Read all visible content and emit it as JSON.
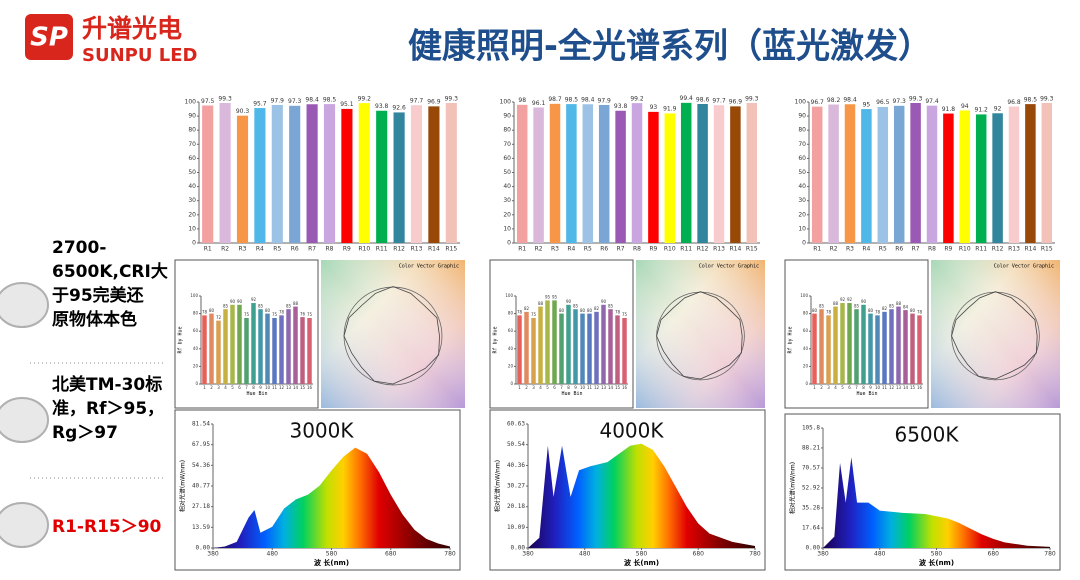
{
  "header": {
    "brand_cn": "升谱光电",
    "brand_en": "SUNPU LED",
    "title": "健康照明-全光谱系列（蓝光激发）"
  },
  "bullets": [
    {
      "lines": [
        "2700-",
        "6500K,CRI大",
        "于95完美还",
        "原物体本色"
      ],
      "color": "#000000"
    },
    {
      "lines": [
        "北美TM-30标",
        "准，Rf＞95，",
        "Rg＞97"
      ],
      "color": "#000000"
    },
    {
      "lines": [
        "R1-R15＞90"
      ],
      "color": "#e00000"
    }
  ],
  "vector_graphic": {
    "title": "Color Vector Graphic"
  },
  "chart_data": [
    {
      "type": "bar",
      "categories": [
        "R1",
        "R2",
        "R3",
        "R4",
        "R5",
        "R6",
        "R7",
        "R8",
        "R9",
        "R10",
        "R11",
        "R12",
        "R13",
        "R14",
        "R15"
      ],
      "values": [
        97.5,
        99.3,
        90.3,
        95.7,
        97.9,
        97.3,
        98.4,
        98.5,
        95.1,
        99.2,
        93.8,
        92.6,
        97.7,
        96.9,
        99.3
      ],
      "colors": [
        "#f2a0a0",
        "#d9b8dc",
        "#f79646",
        "#4fb8e8",
        "#9cc3e6",
        "#7aa6d6",
        "#9b59b6",
        "#c9a6e0",
        "#ff0000",
        "#ffff00",
        "#00b050",
        "#31859c",
        "#f8cccc",
        "#984807",
        "#f2c2b8"
      ],
      "ylim": [
        0,
        100
      ],
      "yticks": [
        0,
        10,
        20,
        30,
        40,
        50,
        60,
        70,
        80,
        90,
        100
      ]
    },
    {
      "type": "bar",
      "categories": [
        "R1",
        "R2",
        "R3",
        "R4",
        "R5",
        "R6",
        "R7",
        "R8",
        "R9",
        "R10",
        "R11",
        "R12",
        "R13",
        "R14",
        "R15"
      ],
      "values": [
        98,
        96.1,
        98.7,
        98.5,
        98.4,
        97.9,
        93.8,
        99.2,
        93,
        91.9,
        99.4,
        98.6,
        97.7,
        96.9,
        99.3
      ],
      "colors": [
        "#f2a0a0",
        "#d9b8dc",
        "#f79646",
        "#4fb8e8",
        "#9cc3e6",
        "#7aa6d6",
        "#9b59b6",
        "#c9a6e0",
        "#ff0000",
        "#ffff00",
        "#00b050",
        "#31859c",
        "#f8cccc",
        "#984807",
        "#f2c2b8"
      ],
      "ylim": [
        0,
        100
      ],
      "yticks": [
        0,
        10,
        20,
        30,
        40,
        50,
        60,
        70,
        80,
        90,
        100
      ]
    },
    {
      "type": "bar",
      "categories": [
        "R1",
        "R2",
        "R3",
        "R4",
        "R5",
        "R6",
        "R7",
        "R8",
        "R9",
        "R10",
        "R11",
        "R12",
        "R13",
        "R14",
        "R15"
      ],
      "values": [
        96.7,
        98.2,
        98.4,
        95,
        96.5,
        97.3,
        99.3,
        97.4,
        91.8,
        94,
        91.2,
        92,
        96.8,
        98.5,
        99.3
      ],
      "colors": [
        "#f2a0a0",
        "#d9b8dc",
        "#f79646",
        "#4fb8e8",
        "#9cc3e6",
        "#7aa6d6",
        "#9b59b6",
        "#c9a6e0",
        "#ff0000",
        "#ffff00",
        "#00b050",
        "#31859c",
        "#f8cccc",
        "#984807",
        "#f2c2b8"
      ],
      "ylim": [
        0,
        100
      ],
      "yticks": [
        0,
        10,
        20,
        30,
        40,
        50,
        60,
        70,
        80,
        90,
        100
      ]
    },
    {
      "type": "bar",
      "x_label": "Hue Bin",
      "y_label": "Rf by Hue",
      "categories": [
        1,
        2,
        3,
        4,
        5,
        6,
        7,
        8,
        9,
        10,
        11,
        12,
        13,
        14,
        15,
        16
      ],
      "values": [
        78,
        80,
        72,
        85,
        90,
        90,
        75,
        92,
        85,
        80,
        75,
        78,
        85,
        88,
        76,
        75
      ],
      "colors": [
        "#e8605a",
        "#e08a60",
        "#d9a050",
        "#c8b040",
        "#a8b848",
        "#70a850",
        "#50a070",
        "#40a090",
        "#4098a8",
        "#5088b8",
        "#5878c0",
        "#7070c0",
        "#9068b0",
        "#a86098",
        "#c06080",
        "#d86070"
      ],
      "ylim": [
        0,
        100
      ],
      "yticks": [
        0,
        20,
        40,
        60,
        80,
        100
      ]
    },
    {
      "type": "bar",
      "x_label": "Hue Bin",
      "y_label": "Rf by Hue",
      "categories": [
        1,
        2,
        3,
        4,
        5,
        6,
        7,
        8,
        9,
        10,
        11,
        12,
        13,
        14,
        15,
        16
      ],
      "values": [
        78,
        82,
        75,
        88,
        95,
        95,
        80,
        90,
        85,
        80,
        80,
        82,
        90,
        85,
        78,
        75
      ],
      "colors": [
        "#e8605a",
        "#e08a60",
        "#d9a050",
        "#c8b040",
        "#a8b848",
        "#70a850",
        "#50a070",
        "#40a090",
        "#4098a8",
        "#5088b8",
        "#5878c0",
        "#7070c0",
        "#9068b0",
        "#a86098",
        "#c06080",
        "#d86070"
      ],
      "ylim": [
        0,
        100
      ],
      "yticks": [
        0,
        20,
        40,
        60,
        80,
        100
      ]
    },
    {
      "type": "bar",
      "x_label": "Hue Bin",
      "y_label": "Rf by Hue",
      "categories": [
        1,
        2,
        3,
        4,
        5,
        6,
        7,
        8,
        9,
        10,
        11,
        12,
        13,
        14,
        15,
        16
      ],
      "values": [
        80,
        85,
        78,
        88,
        92,
        92,
        85,
        90,
        80,
        78,
        82,
        85,
        88,
        84,
        80,
        78
      ],
      "colors": [
        "#e8605a",
        "#e08a60",
        "#d9a050",
        "#c8b040",
        "#a8b848",
        "#70a850",
        "#50a070",
        "#40a090",
        "#4098a8",
        "#5088b8",
        "#5878c0",
        "#7070c0",
        "#9068b0",
        "#a86098",
        "#c06080",
        "#d86070"
      ],
      "ylim": [
        0,
        100
      ],
      "yticks": [
        0,
        20,
        40,
        60,
        80,
        100
      ]
    },
    {
      "type": "area",
      "title": "3000K",
      "x_label": "波 长(nm)",
      "y_label": "相对光谱(mW/nm)",
      "x": [
        380,
        400,
        420,
        440,
        450,
        460,
        480,
        500,
        520,
        540,
        560,
        580,
        600,
        620,
        640,
        660,
        680,
        700,
        720,
        740,
        760,
        780
      ],
      "values": [
        0,
        1,
        4,
        20,
        25,
        10,
        14,
        26,
        32,
        35,
        41,
        51,
        60,
        66,
        62,
        50,
        35,
        22,
        12,
        6,
        3,
        1
      ],
      "xlim": [
        380,
        780
      ],
      "xticks": [
        380,
        480,
        580,
        680,
        780
      ],
      "ylim": [
        0,
        81.54
      ],
      "yticks": [
        {
          "value": 0,
          "label": "0.00"
        },
        13.59,
        27.18,
        40.77,
        54.36,
        67.95,
        81.54
      ]
    },
    {
      "type": "area",
      "title": "4000K",
      "x_label": "波 长(nm)",
      "y_label": "相对光谱(mW/nm)",
      "x": [
        380,
        400,
        415,
        425,
        440,
        455,
        470,
        490,
        520,
        560,
        580,
        600,
        620,
        640,
        660,
        680,
        700,
        740,
        780
      ],
      "values": [
        0,
        5,
        50,
        25,
        50,
        25,
        38,
        40,
        42,
        50,
        51,
        48,
        40,
        30,
        20,
        12,
        7,
        3,
        1
      ],
      "xlim": [
        380,
        780
      ],
      "xticks": [
        380,
        480,
        580,
        680,
        780
      ],
      "ylim": [
        0,
        60.63
      ],
      "yticks": [
        {
          "value": 0,
          "label": "0.00"
        },
        10.09,
        20.18,
        30.27,
        40.36,
        50.54,
        60.63
      ]
    },
    {
      "type": "area",
      "title": "6500K",
      "x_label": "波 长(nm)",
      "y_label": "相对光谱(mW/nm)",
      "x": [
        380,
        400,
        410,
        420,
        430,
        440,
        460,
        480,
        520,
        560,
        600,
        620,
        640,
        660,
        680,
        700,
        740,
        780
      ],
      "values": [
        0,
        10,
        75,
        40,
        80,
        40,
        40,
        33,
        31,
        30,
        26,
        22,
        17,
        12,
        8,
        5,
        2,
        1
      ],
      "xlim": [
        380,
        780
      ],
      "xticks": [
        380,
        480,
        580,
        680,
        780
      ],
      "ylim": [
        0,
        105.8
      ],
      "yticks": [
        {
          "value": 0,
          "label": "0.00"
        },
        17.64,
        35.28,
        52.92,
        70.57,
        88.21,
        105.8
      ]
    }
  ]
}
